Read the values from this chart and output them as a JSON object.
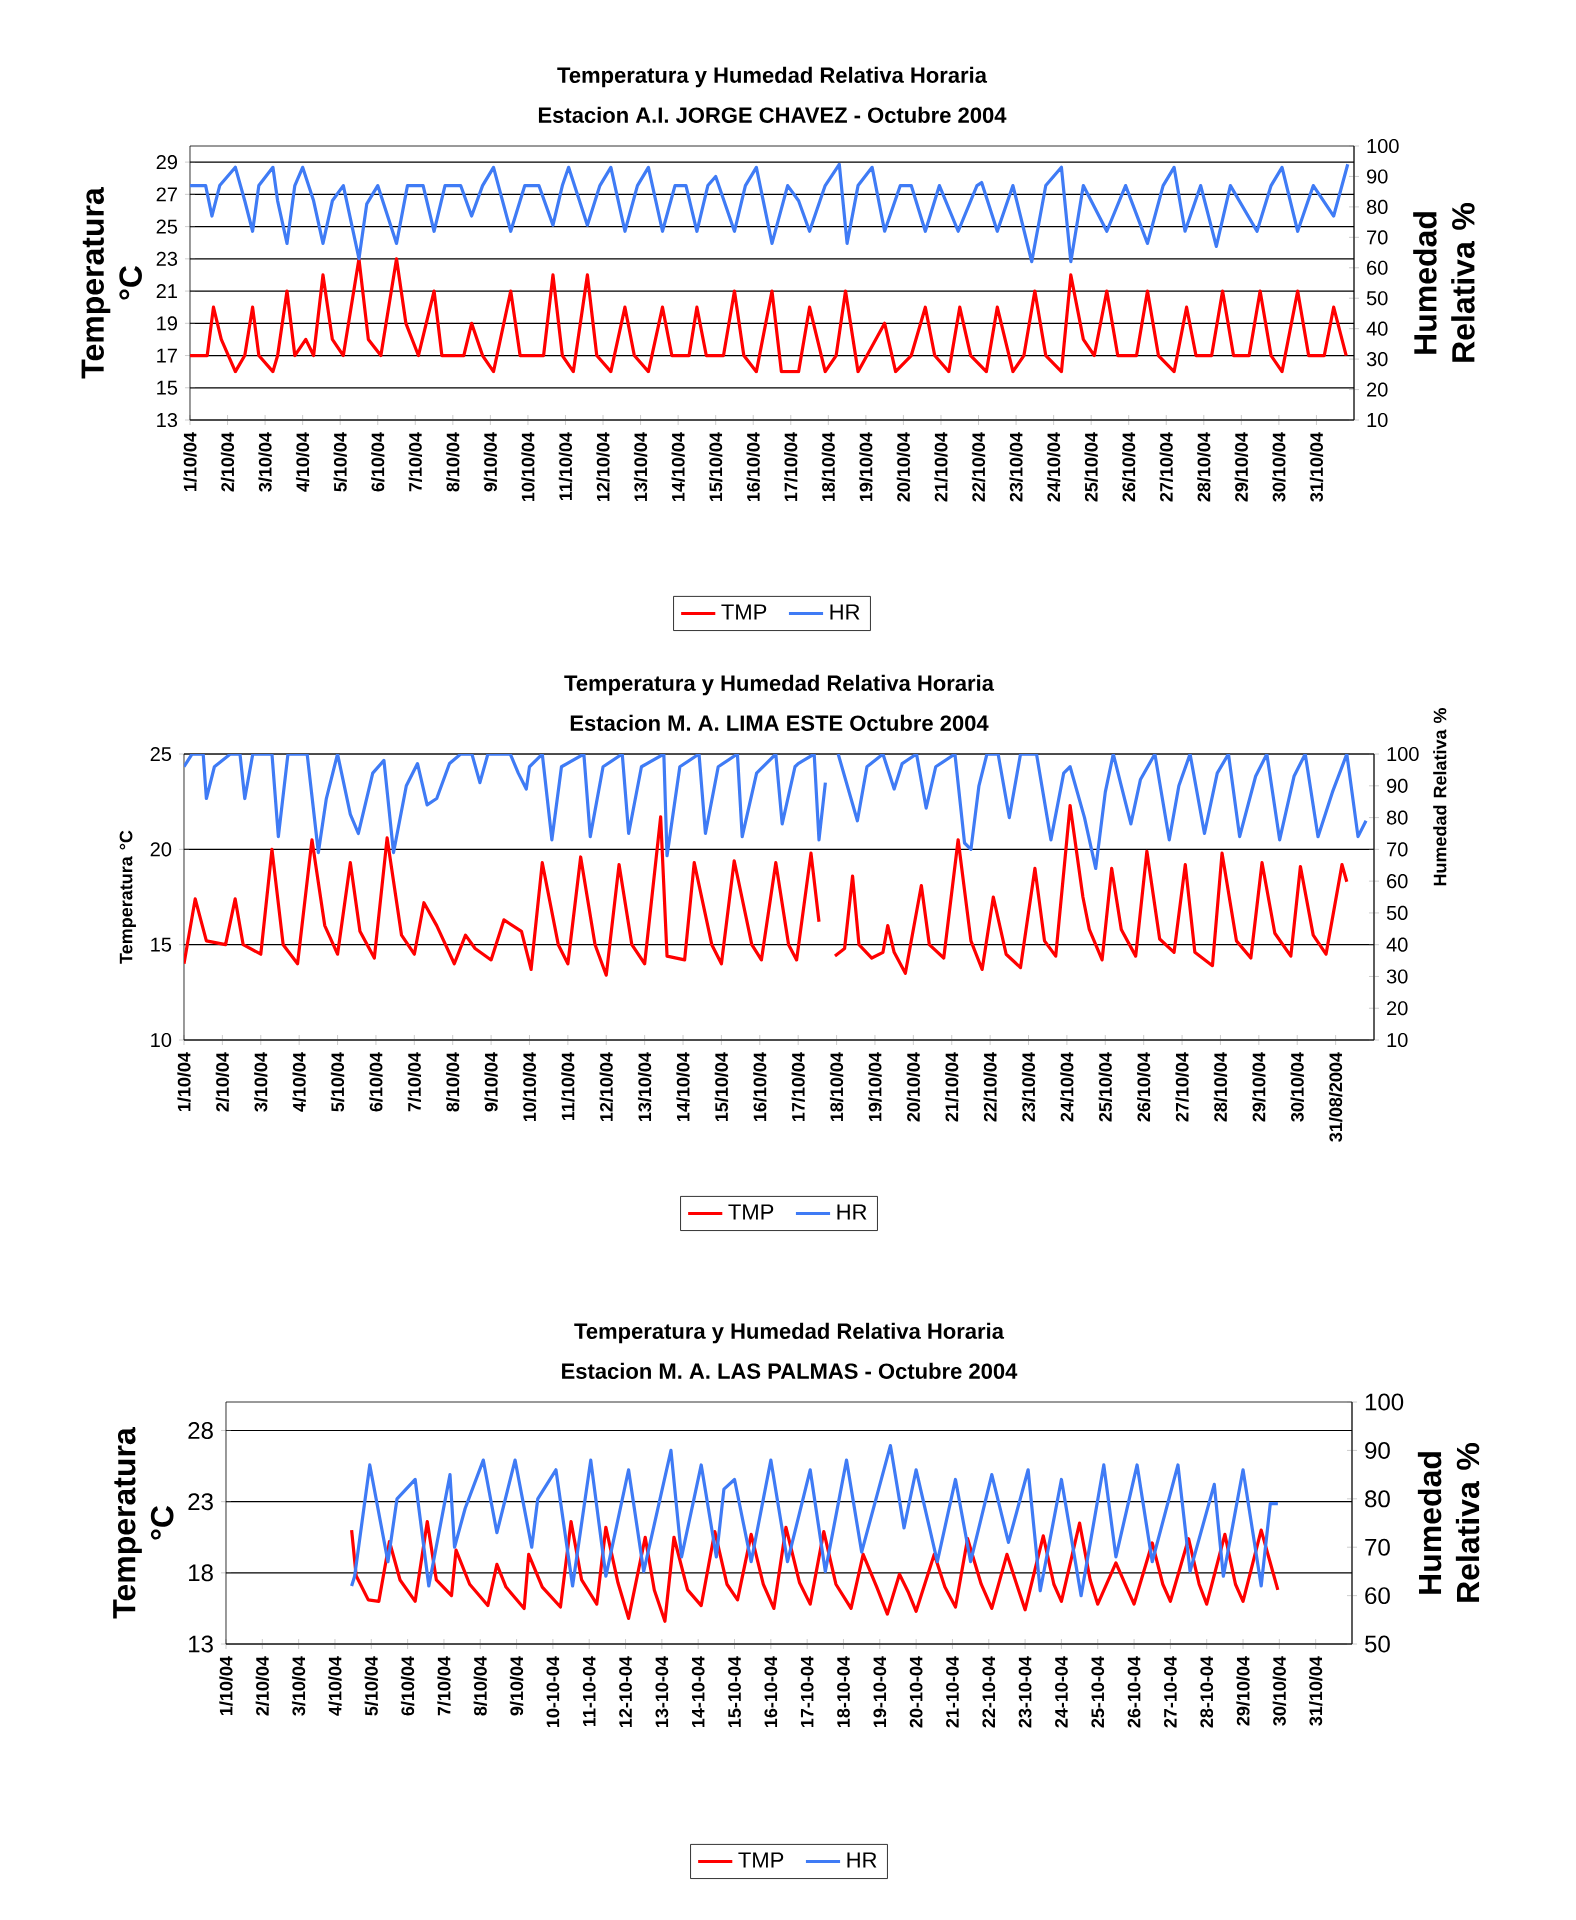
{
  "chart_data": [
    {
      "type": "line",
      "title": "Temperatura y Humedad Relativa Horaria",
      "subtitle": "Estacion A.I. JORGE CHAVEZ - Octubre 2004",
      "ylabel": "Temperatura °C",
      "y2label": "Humedad Relativa %",
      "grid": "y",
      "legend": "bottom",
      "xlim": [
        "2004-10-01",
        "2004-11-01"
      ],
      "ylim": [
        13,
        30
      ],
      "yticks": [
        13,
        15,
        17,
        19,
        21,
        23,
        25,
        27,
        29
      ],
      "y2lim": [
        10,
        100
      ],
      "y2ticks": [
        10,
        20,
        30,
        40,
        50,
        60,
        70,
        80,
        90,
        100
      ],
      "xticks": [
        {
          "value": "2004-10-01",
          "label": "1/10/04"
        },
        {
          "value": "2004-10-02",
          "label": "2/10/04"
        },
        {
          "value": "2004-10-03",
          "label": "3/10/04"
        },
        {
          "value": "2004-10-04",
          "label": "4/10/04"
        },
        {
          "value": "2004-10-05",
          "label": "5/10/04"
        },
        {
          "value": "2004-10-06",
          "label": "6/10/04"
        },
        {
          "value": "2004-10-07",
          "label": "7/10/04"
        },
        {
          "value": "2004-10-08",
          "label": "8/10/04"
        },
        {
          "value": "2004-10-09",
          "label": "9/10/04"
        },
        {
          "value": "2004-10-10",
          "label": "10/10/04"
        },
        {
          "value": "2004-10-11",
          "label": "11/10/04"
        },
        {
          "value": "2004-10-12",
          "label": "12/10/04"
        },
        {
          "value": "2004-10-13",
          "label": "13/10/04"
        },
        {
          "value": "2004-10-14",
          "label": "14/10/04"
        },
        {
          "value": "2004-10-15",
          "label": "15/10/04"
        },
        {
          "value": "2004-10-16",
          "label": "16/10/04"
        },
        {
          "value": "2004-10-17",
          "label": "17/10/04"
        },
        {
          "value": "2004-10-18",
          "label": "18/10/04"
        },
        {
          "value": "2004-10-19",
          "label": "19/10/04"
        },
        {
          "value": "2004-10-20",
          "label": "20/10/04"
        },
        {
          "value": "2004-10-21",
          "label": "21/10/04"
        },
        {
          "value": "2004-10-22",
          "label": "22/10/04"
        },
        {
          "value": "2004-10-23",
          "label": "23/10/04"
        },
        {
          "value": "2004-10-24",
          "label": "24/10/04"
        },
        {
          "value": "2004-10-25",
          "label": "25/10/04"
        },
        {
          "value": "2004-10-26",
          "label": "26/10/04"
        },
        {
          "value": "2004-10-27",
          "label": "27/10/04"
        },
        {
          "value": "2004-10-28",
          "label": "28/10/04"
        },
        {
          "value": "2004-10-29",
          "label": "29/10/04"
        },
        {
          "value": "2004-10-30",
          "label": "30/10/04"
        },
        {
          "value": "2004-10-31",
          "label": "31/10/04"
        }
      ],
      "series": [
        {
          "name": "TMP",
          "color": "#ff0000",
          "x": [
            "2004-10-01T00:00",
            "2004-10-01T11:00",
            "2004-10-01T15:00",
            "2004-10-01T20:00",
            "2004-10-02T05:00",
            "2004-10-02T11:00",
            "2004-10-02T16:00",
            "2004-10-02T20:00",
            "2004-10-03T05:00",
            "2004-10-03T08:00",
            "2004-10-03T14:00",
            "2004-10-03T19:00",
            "2004-10-04T02:00",
            "2004-10-04T07:00",
            "2004-10-04T13:00",
            "2004-10-04T19:00",
            "2004-10-05T02:00",
            "2004-10-05T12:00",
            "2004-10-05T18:00",
            "2004-10-06T02:00",
            "2004-10-06T12:00",
            "2004-10-06T18:00",
            "2004-10-07T02:00",
            "2004-10-07T12:00",
            "2004-10-07T17:00",
            "2004-10-08T07:00",
            "2004-10-08T12:00",
            "2004-10-08T19:00",
            "2004-10-09T02:00",
            "2004-10-09T13:00",
            "2004-10-09T19:00",
            "2004-10-10T10:00",
            "2004-10-10T16:00",
            "2004-10-10T22:00",
            "2004-10-11T05:00",
            "2004-10-11T14:00",
            "2004-10-11T20:00",
            "2004-10-12T05:00",
            "2004-10-12T14:00",
            "2004-10-12T20:00",
            "2004-10-13T05:00",
            "2004-10-13T14:00",
            "2004-10-13T20:00",
            "2004-10-14T07:00",
            "2004-10-14T12:00",
            "2004-10-14T18:00",
            "2004-10-15T05:00",
            "2004-10-15T12:00",
            "2004-10-15T18:00",
            "2004-10-16T02:00",
            "2004-10-16T12:00",
            "2004-10-16T18:00",
            "2004-10-17T05:00",
            "2004-10-17T12:00",
            "2004-10-17T22:00",
            "2004-10-18T05:00",
            "2004-10-18T11:00",
            "2004-10-18T19:00",
            "2004-10-19T12:00",
            "2004-10-19T19:00",
            "2004-10-20T05:00",
            "2004-10-20T14:00",
            "2004-10-20T20:00",
            "2004-10-21T05:00",
            "2004-10-21T12:00",
            "2004-10-21T19:00",
            "2004-10-22T05:00",
            "2004-10-22T12:00",
            "2004-10-22T22:00",
            "2004-10-23T05:00",
            "2004-10-23T12:00",
            "2004-10-23T19:00",
            "2004-10-24T05:00",
            "2004-10-24T11:00",
            "2004-10-24T19:00",
            "2004-10-25T02:00",
            "2004-10-25T10:00",
            "2004-10-25T17:00",
            "2004-10-26T05:00",
            "2004-10-26T12:00",
            "2004-10-26T19:00",
            "2004-10-27T05:00",
            "2004-10-27T13:00",
            "2004-10-27T19:00",
            "2004-10-28T05:00",
            "2004-10-28T12:00",
            "2004-10-28T19:00",
            "2004-10-29T05:00",
            "2004-10-29T12:00",
            "2004-10-29T19:00",
            "2004-10-30T02:00",
            "2004-10-30T12:00",
            "2004-10-30T19:00",
            "2004-10-31T05:00",
            "2004-10-31T11:00",
            "2004-10-31T19:00"
          ],
          "values": [
            17,
            17,
            20,
            18,
            16,
            17,
            20,
            17,
            16,
            17,
            21,
            17,
            18,
            17,
            22,
            18,
            17,
            23,
            18,
            17,
            23,
            19,
            17,
            21,
            17,
            17,
            19,
            17,
            16,
            21,
            17,
            17,
            22,
            17,
            16,
            22,
            17,
            16,
            20,
            17,
            16,
            20,
            17,
            17,
            20,
            17,
            17,
            21,
            17,
            16,
            21,
            16,
            16,
            20,
            16,
            17,
            21,
            16,
            19,
            16,
            17,
            20,
            17,
            16,
            20,
            17,
            16,
            20,
            16,
            17,
            21,
            17,
            16,
            22,
            18,
            17,
            21,
            17,
            17,
            21,
            17,
            16,
            20,
            17,
            17,
            21,
            17,
            17,
            21,
            17,
            16,
            21,
            17,
            17,
            20,
            17
          ]
        },
        {
          "name": "HR",
          "color": "#3f7bf5",
          "axis": "y2",
          "x": [
            "2004-10-01T00:00",
            "2004-10-01T10:00",
            "2004-10-01T14:00",
            "2004-10-01T19:00",
            "2004-10-02T05:00",
            "2004-10-02T11:00",
            "2004-10-02T16:00",
            "2004-10-02T20:00",
            "2004-10-03T05:00",
            "2004-10-03T08:00",
            "2004-10-03T14:00",
            "2004-10-03T19:00",
            "2004-10-04T00:00",
            "2004-10-04T07:00",
            "2004-10-04T13:00",
            "2004-10-04T19:00",
            "2004-10-05T02:00",
            "2004-10-05T12:00",
            "2004-10-05T17:00",
            "2004-10-06T00:00",
            "2004-10-06T12:00",
            "2004-10-06T19:00",
            "2004-10-07T05:00",
            "2004-10-07T12:00",
            "2004-10-07T19:00",
            "2004-10-08T05:00",
            "2004-10-08T12:00",
            "2004-10-08T19:00",
            "2004-10-09T02:00",
            "2004-10-09T13:00",
            "2004-10-09T22:00",
            "2004-10-10T07:00",
            "2004-10-10T16:00",
            "2004-10-10T22:00",
            "2004-10-11T02:00",
            "2004-10-11T14:00",
            "2004-10-11T22:00",
            "2004-10-12T05:00",
            "2004-10-12T14:00",
            "2004-10-12T22:00",
            "2004-10-13T05:00",
            "2004-10-13T14:00",
            "2004-10-13T22:00",
            "2004-10-14T05:00",
            "2004-10-14T12:00",
            "2004-10-14T19:00",
            "2004-10-15T00:00",
            "2004-10-15T12:00",
            "2004-10-15T19:00",
            "2004-10-16T02:00",
            "2004-10-16T12:00",
            "2004-10-16T22:00",
            "2004-10-17T05:00",
            "2004-10-17T12:00",
            "2004-10-17T22:00",
            "2004-10-18T07:00",
            "2004-10-18T12:00",
            "2004-10-18T19:00",
            "2004-10-19T04:00",
            "2004-10-19T12:00",
            "2004-10-19T22:00",
            "2004-10-20T05:00",
            "2004-10-20T14:00",
            "2004-10-20T23:00",
            "2004-10-21T11:00",
            "2004-10-21T23:00",
            "2004-10-22T02:00",
            "2004-10-22T12:00",
            "2004-10-22T22:00",
            "2004-10-23T10:00",
            "2004-10-23T19:00",
            "2004-10-24T05:00",
            "2004-10-24T11:00",
            "2004-10-24T19:00",
            "2004-10-25T10:00",
            "2004-10-25T22:00",
            "2004-10-26T12:00",
            "2004-10-26T22:00",
            "2004-10-27T05:00",
            "2004-10-27T12:00",
            "2004-10-27T22:00",
            "2004-10-28T08:00",
            "2004-10-28T17:00",
            "2004-10-29T10:00",
            "2004-10-29T19:00",
            "2004-10-30T02:00",
            "2004-10-30T12:00",
            "2004-10-30T22:00",
            "2004-10-31T11:00",
            "2004-10-31T20:00"
          ],
          "values": [
            87,
            87,
            77,
            87,
            93,
            82,
            72,
            87,
            93,
            82,
            68,
            87,
            93,
            82,
            68,
            82,
            87,
            63,
            81,
            87,
            68,
            87,
            87,
            72,
            87,
            87,
            77,
            87,
            93,
            72,
            87,
            87,
            74,
            87,
            93,
            74,
            87,
            93,
            72,
            87,
            93,
            72,
            87,
            87,
            72,
            87,
            90,
            72,
            87,
            93,
            68,
            87,
            82,
            72,
            87,
            94,
            68,
            87,
            93,
            72,
            87,
            87,
            72,
            87,
            72,
            87,
            88,
            72,
            87,
            62,
            87,
            93,
            62,
            87,
            72,
            87,
            68,
            87,
            93,
            72,
            87,
            67,
            87,
            72,
            87,
            93,
            72,
            87,
            77,
            94
          ]
        }
      ]
    },
    {
      "type": "line",
      "title": "Temperatura y Humedad Relativa Horaria",
      "subtitle": "Estacion M. A. LIMA ESTE Octubre 2004",
      "ylabel": "Temperatura °C",
      "y2label": "Humedad Relativa %",
      "grid": "y",
      "legend": "bottom",
      "xlim": [
        "2004-10-01",
        "2004-11-01"
      ],
      "ylim": [
        10,
        25
      ],
      "yticks": [
        10,
        15,
        20,
        25
      ],
      "y2lim": [
        10,
        100
      ],
      "y2ticks": [
        10,
        20,
        30,
        40,
        50,
        60,
        70,
        80,
        90,
        100
      ],
      "xticks": [
        {
          "value": "2004-10-01",
          "label": "1/10/04"
        },
        {
          "value": "2004-10-02",
          "label": "2/10/04"
        },
        {
          "value": "2004-10-03",
          "label": "3/10/04"
        },
        {
          "value": "2004-10-04",
          "label": "4/10/04"
        },
        {
          "value": "2004-10-05",
          "label": "5/10/04"
        },
        {
          "value": "2004-10-06",
          "label": "6/10/04"
        },
        {
          "value": "2004-10-07",
          "label": "7/10/04"
        },
        {
          "value": "2004-10-08",
          "label": "8/10/04"
        },
        {
          "value": "2004-10-09",
          "label": "9/10/04"
        },
        {
          "value": "2004-10-10",
          "label": "10/10/04"
        },
        {
          "value": "2004-10-11",
          "label": "11/10/04"
        },
        {
          "value": "2004-10-12",
          "label": "12/10/04"
        },
        {
          "value": "2004-10-13",
          "label": "13/10/04"
        },
        {
          "value": "2004-10-14",
          "label": "14/10/04"
        },
        {
          "value": "2004-10-15",
          "label": "15/10/04"
        },
        {
          "value": "2004-10-16",
          "label": "16/10/04"
        },
        {
          "value": "2004-10-17",
          "label": "17/10/04"
        },
        {
          "value": "2004-10-18",
          "label": "18/10/04"
        },
        {
          "value": "2004-10-19",
          "label": "19/10/04"
        },
        {
          "value": "2004-10-20",
          "label": "20/10/04"
        },
        {
          "value": "2004-10-21",
          "label": "21/10/04"
        },
        {
          "value": "2004-10-22",
          "label": "22/10/04"
        },
        {
          "value": "2004-10-23",
          "label": "23/10/04"
        },
        {
          "value": "2004-10-24",
          "label": "24/10/04"
        },
        {
          "value": "2004-10-25",
          "label": "25/10/04"
        },
        {
          "value": "2004-10-26",
          "label": "26/10/04"
        },
        {
          "value": "2004-10-27",
          "label": "27/10/04"
        },
        {
          "value": "2004-10-28",
          "label": "28/10/04"
        },
        {
          "value": "2004-10-29",
          "label": "29/10/04"
        },
        {
          "value": "2004-10-30",
          "label": "30/10/04"
        },
        {
          "value": "2004-10-31",
          "label": "31/08/2004"
        }
      ],
      "series": [
        {
          "name": "TMP",
          "color": "#ff0000",
          "x": [
            "2004-10-01T00:00",
            "2004-10-01T07:00",
            "2004-10-01T14:00",
            "2004-10-02T02:00",
            "2004-10-02T08:00",
            "2004-10-02T13:00",
            "2004-10-03T00:00",
            "2004-10-03T07:00",
            "2004-10-03T14:00",
            "2004-10-03T23:00",
            "2004-10-04T08:00",
            "2004-10-04T16:00",
            "2004-10-05T00:00",
            "2004-10-05T08:00",
            "2004-10-05T14:00",
            "2004-10-05T23:00",
            "2004-10-06T07:00",
            "2004-10-06T16:00",
            "2004-10-07T00:00",
            "2004-10-07T06:00",
            "2004-10-07T14:00",
            "2004-10-08T01:00",
            "2004-10-08T08:00",
            "2004-10-08T14:00",
            "2004-10-09T00:00",
            "2004-10-09T08:00",
            "2004-10-09T19:00",
            "2004-10-10T01:00",
            "2004-10-10T08:00",
            "2004-10-10T18:00",
            "2004-10-11T00:00",
            "2004-10-11T08:00",
            "2004-10-11T17:00",
            "2004-10-12T00:00",
            "2004-10-12T08:00",
            "2004-10-12T16:00",
            "2004-10-13T00:00",
            "2004-10-13T10:00",
            "2004-10-13T14:00",
            "2004-10-14T01:00",
            "2004-10-14T07:00",
            "2004-10-14T18:00",
            "2004-10-15T00:00",
            "2004-10-15T08:00",
            "2004-10-15T19:00",
            "2004-10-16T01:00",
            "2004-10-16T10:00",
            "2004-10-16T18:00",
            "2004-10-16T23:00",
            "2004-10-17T08:00",
            "2004-10-17T13:00",
            "2004-10-17T19:00",
            "2004-10-17T23:00",
            "2004-10-18T05:00",
            "2004-10-18T10:00",
            "2004-10-18T14:00",
            "2004-10-18T22:00",
            "2004-10-19T05:00",
            "2004-10-19T08:00",
            "2004-10-19T12:00",
            "2004-10-19T19:00",
            "2004-10-20T05:00",
            "2004-10-20T10:00",
            "2004-10-20T19:00",
            "2004-10-21T04:00",
            "2004-10-21T12:00",
            "2004-10-21T19:00",
            "2004-10-22T02:00",
            "2004-10-22T10:00",
            "2004-10-22T19:00",
            "2004-10-23T04:00",
            "2004-10-23T10:00",
            "2004-10-23T17:00",
            "2004-10-24T02:00",
            "2004-10-24T10:00",
            "2004-10-24T14:00",
            "2004-10-24T22:00",
            "2004-10-25T04:00",
            "2004-10-25T10:00",
            "2004-10-25T19:00",
            "2004-10-26T02:00",
            "2004-10-26T10:00",
            "2004-10-26T19:00",
            "2004-10-27T02:00",
            "2004-10-27T08:00",
            "2004-10-27T19:00",
            "2004-10-28T01:00",
            "2004-10-28T10:00",
            "2004-10-28T19:00",
            "2004-10-29T02:00",
            "2004-10-29T10:00",
            "2004-10-29T20:00",
            "2004-10-30T02:00",
            "2004-10-30T10:00",
            "2004-10-30T18:00",
            "2004-10-31T04:00",
            "2004-10-31T07:00"
          ],
          "values": [
            14,
            17.4,
            15.2,
            15,
            17.4,
            15,
            14.5,
            20,
            15,
            14,
            20.5,
            16,
            14.5,
            19.3,
            15.7,
            14.3,
            20.6,
            15.5,
            14.5,
            17.2,
            16,
            14,
            15.5,
            14.8,
            14.2,
            16.3,
            15.7,
            13.7,
            19.3,
            15,
            14,
            19.6,
            15,
            13.4,
            19.2,
            15,
            14,
            21.7,
            14.4,
            14.2,
            19.3,
            15,
            14,
            19.4,
            15,
            14.2,
            19.3,
            15,
            14.2,
            19.8,
            16.2,
            null,
            14.4,
            14.8,
            18.6,
            15,
            14.3,
            14.6,
            16,
            14.6,
            13.5,
            18.1,
            15,
            14.3,
            20.5,
            15.2,
            13.7,
            17.5,
            14.5,
            13.8,
            19,
            15.2,
            14.4,
            22.3,
            17.5,
            15.8,
            14.2,
            19,
            15.8,
            14.4,
            19.9,
            15.3,
            14.6,
            19.2,
            14.6,
            13.9,
            19.8,
            15.2,
            14.3,
            19.3,
            15.6,
            14.4,
            19.1,
            15.5,
            14.5,
            19.2,
            18.3
          ]
        },
        {
          "name": "HR",
          "color": "#3f7bf5",
          "axis": "y2",
          "x": [
            "2004-10-01T00:00",
            "2004-10-01T05:00",
            "2004-10-01T12:00",
            "2004-10-01T14:00",
            "2004-10-01T19:00",
            "2004-10-02T05:00",
            "2004-10-02T11:00",
            "2004-10-02T14:00",
            "2004-10-02T19:00",
            "2004-10-03T07:00",
            "2004-10-03T11:00",
            "2004-10-03T17:00",
            "2004-10-04T05:00",
            "2004-10-04T12:00",
            "2004-10-04T17:00",
            "2004-10-05T00:00",
            "2004-10-05T08:00",
            "2004-10-05T13:00",
            "2004-10-05T22:00",
            "2004-10-06T05:00",
            "2004-10-06T11:00",
            "2004-10-06T19:00",
            "2004-10-07T02:00",
            "2004-10-07T08:00",
            "2004-10-07T14:00",
            "2004-10-07T22:00",
            "2004-10-08T05:00",
            "2004-10-08T12:00",
            "2004-10-08T17:00",
            "2004-10-08T22:00",
            "2004-10-09T12:00",
            "2004-10-09T17:00",
            "2004-10-09T22:00",
            "2004-10-10T00:00",
            "2004-10-10T08:00",
            "2004-10-10T14:00",
            "2004-10-10T20:00",
            "2004-10-11T10:00",
            "2004-10-11T14:00",
            "2004-10-11T22:00",
            "2004-10-12T10:00",
            "2004-10-12T14:00",
            "2004-10-12T22:00",
            "2004-10-13T12:00",
            "2004-10-13T14:00",
            "2004-10-13T22:00",
            "2004-10-14T10:00",
            "2004-10-14T14:00",
            "2004-10-14T22:00",
            "2004-10-15T10:00",
            "2004-10-15T13:00",
            "2004-10-15T22:00",
            "2004-10-16T10:00",
            "2004-10-16T14:00",
            "2004-10-16T22:00",
            "2004-10-17T00:00",
            "2004-10-17T10:00",
            "2004-10-17T13:00",
            "2004-10-17T17:00",
            "2004-10-17T19:00",
            "2004-10-18T01:00",
            "2004-10-18T13:00",
            "2004-10-18T19:00",
            "2004-10-19T05:00",
            "2004-10-19T12:00",
            "2004-10-19T17:00",
            "2004-10-20T02:00",
            "2004-10-20T08:00",
            "2004-10-20T14:00",
            "2004-10-21T02:00",
            "2004-10-21T08:00",
            "2004-10-21T12:00",
            "2004-10-21T17:00",
            "2004-10-21T22:00",
            "2004-10-22T05:00",
            "2004-10-22T12:00",
            "2004-10-22T19:00",
            "2004-10-23T05:00",
            "2004-10-23T14:00",
            "2004-10-23T22:00",
            "2004-10-24T02:00",
            "2004-10-24T11:00",
            "2004-10-24T18:00",
            "2004-10-25T00:00",
            "2004-10-25T05:00",
            "2004-10-25T10:00",
            "2004-10-25T16:00",
            "2004-10-25T22:00",
            "2004-10-26T07:00",
            "2004-10-26T16:00",
            "2004-10-26T22:00",
            "2004-10-27T05:00",
            "2004-10-27T14:00",
            "2004-10-27T22:00",
            "2004-10-28T05:00",
            "2004-10-28T12:00",
            "2004-10-28T22:00",
            "2004-10-29T05:00",
            "2004-10-29T13:00",
            "2004-10-29T22:00",
            "2004-10-30T05:00",
            "2004-10-30T13:00",
            "2004-10-30T22:00",
            "2004-10-31T07:00",
            "2004-10-31T14:00",
            "2004-10-31T19:00"
          ],
          "values": [
            96,
            100,
            100,
            86,
            96,
            100,
            100,
            86,
            100,
            100,
            74,
            100,
            100,
            69,
            86,
            100,
            81,
            75,
            94,
            98,
            69,
            90,
            97,
            84,
            86,
            97,
            100,
            100,
            91,
            100,
            100,
            94,
            89,
            96,
            100,
            73,
            96,
            100,
            74,
            96,
            100,
            75,
            96,
            100,
            68,
            96,
            100,
            75,
            96,
            100,
            74,
            94,
            100,
            78,
            96,
            97,
            100,
            73,
            91,
            null,
            100,
            79,
            96,
            100,
            89,
            97,
            100,
            83,
            96,
            100,
            72,
            70,
            90,
            100,
            100,
            80,
            100,
            100,
            73,
            94,
            96,
            80,
            64,
            88,
            100,
            90,
            78,
            92,
            100,
            73,
            90,
            100,
            75,
            94,
            100,
            74,
            93,
            100,
            73,
            93,
            100,
            74,
            88,
            100,
            74,
            79
          ]
        }
      ]
    },
    {
      "type": "line",
      "title": "Temperatura y Humedad Relativa Horaria",
      "subtitle": "Estacion M. A. LAS PALMAS - Octubre 2004",
      "ylabel": "Temperatura °C",
      "y2label": "Humedad Relativa %",
      "grid": "y",
      "legend": "bottom",
      "xlim": [
        "2004-10-01",
        "2004-11-01"
      ],
      "ylim": [
        13,
        30
      ],
      "yticks": [
        13,
        18,
        23,
        28
      ],
      "y2lim": [
        50,
        100
      ],
      "y2ticks": [
        50,
        60,
        70,
        80,
        90,
        100
      ],
      "xticks": [
        {
          "value": "2004-10-01",
          "label": "1/10/04"
        },
        {
          "value": "2004-10-02",
          "label": "2/10/04"
        },
        {
          "value": "2004-10-03",
          "label": "3/10/04"
        },
        {
          "value": "2004-10-04",
          "label": "4/10/04"
        },
        {
          "value": "2004-10-05",
          "label": "5/10/04"
        },
        {
          "value": "2004-10-06",
          "label": "6/10/04"
        },
        {
          "value": "2004-10-07",
          "label": "7/10/04"
        },
        {
          "value": "2004-10-08",
          "label": "8/10/04"
        },
        {
          "value": "2004-10-09",
          "label": "9/10/04"
        },
        {
          "value": "2004-10-10",
          "label": "10-10-04"
        },
        {
          "value": "2004-10-11",
          "label": "11-10-04"
        },
        {
          "value": "2004-10-12",
          "label": "12-10-04"
        },
        {
          "value": "2004-10-13",
          "label": "13-10-04"
        },
        {
          "value": "2004-10-14",
          "label": "14-10-04"
        },
        {
          "value": "2004-10-15",
          "label": "15-10-04"
        },
        {
          "value": "2004-10-16",
          "label": "16-10-04"
        },
        {
          "value": "2004-10-17",
          "label": "17-10-04"
        },
        {
          "value": "2004-10-18",
          "label": "18-10-04"
        },
        {
          "value": "2004-10-19",
          "label": "19-10-04"
        },
        {
          "value": "2004-10-20",
          "label": "20-10-04"
        },
        {
          "value": "2004-10-21",
          "label": "21-10-04"
        },
        {
          "value": "2004-10-22",
          "label": "22-10-04"
        },
        {
          "value": "2004-10-23",
          "label": "23-10-04"
        },
        {
          "value": "2004-10-24",
          "label": "24-10-04"
        },
        {
          "value": "2004-10-25",
          "label": "25-10-04"
        },
        {
          "value": "2004-10-26",
          "label": "26-10-04"
        },
        {
          "value": "2004-10-27",
          "label": "27-10-04"
        },
        {
          "value": "2004-10-28",
          "label": "28-10-04"
        },
        {
          "value": "2004-10-29",
          "label": "29/10/04"
        },
        {
          "value": "2004-10-30",
          "label": "30/10/04"
        },
        {
          "value": "2004-10-31",
          "label": "31/10/04"
        }
      ],
      "series": [
        {
          "name": "TMP",
          "color": "#ff0000",
          "x": [
            "2004-10-04T11:00",
            "2004-10-04T14:00",
            "2004-10-04T22:00",
            "2004-10-05T05:00",
            "2004-10-05T12:00",
            "2004-10-05T19:00",
            "2004-10-06T05:00",
            "2004-10-06T13:00",
            "2004-10-06T19:00",
            "2004-10-07T05:00",
            "2004-10-07T08:00",
            "2004-10-07T17:00",
            "2004-10-08T05:00",
            "2004-10-08T11:00",
            "2004-10-08T17:00",
            "2004-10-09T05:00",
            "2004-10-09T08:00",
            "2004-10-09T17:00",
            "2004-10-10T05:00",
            "2004-10-10T12:00",
            "2004-10-10T19:00",
            "2004-10-11T05:00",
            "2004-10-11T11:00",
            "2004-10-11T19:00",
            "2004-10-12T02:00",
            "2004-10-12T13:00",
            "2004-10-12T19:00",
            "2004-10-13T02:00",
            "2004-10-13T08:00",
            "2004-10-13T17:00",
            "2004-10-14T02:00",
            "2004-10-14T11:00",
            "2004-10-14T19:00",
            "2004-10-15T02:00",
            "2004-10-15T11:00",
            "2004-10-15T19:00",
            "2004-10-16T02:00",
            "2004-10-16T10:00",
            "2004-10-16T19:00",
            "2004-10-17T02:00",
            "2004-10-17T11:00",
            "2004-10-17T19:00",
            "2004-10-18T05:00",
            "2004-10-18T13:00",
            "2004-10-18T22:00",
            "2004-10-19T05:00",
            "2004-10-19T13:00",
            "2004-10-19T19:00",
            "2004-10-20T00:00",
            "2004-10-20T12:00",
            "2004-10-20T19:00",
            "2004-10-21T02:00",
            "2004-10-21T10:00",
            "2004-10-21T19:00",
            "2004-10-22T02:00",
            "2004-10-22T12:00",
            "2004-10-22T19:00",
            "2004-10-23T00:00",
            "2004-10-23T12:00",
            "2004-10-23T19:00",
            "2004-10-24T00:00",
            "2004-10-24T12:00",
            "2004-10-24T19:00",
            "2004-10-25T00:00",
            "2004-10-25T12:00",
            "2004-10-25T19:00",
            "2004-10-26T00:00",
            "2004-10-26T12:00",
            "2004-10-26T19:00",
            "2004-10-27T00:00",
            "2004-10-27T12:00",
            "2004-10-27T19:00",
            "2004-10-28T00:00",
            "2004-10-28T12:00",
            "2004-10-28T19:00",
            "2004-10-29T00:00",
            "2004-10-29T12:00",
            "2004-10-29T23:00"
          ],
          "values": [
            21,
            17.8,
            16.1,
            16,
            20.2,
            17.5,
            16,
            21.6,
            17.5,
            16.4,
            19.6,
            17.2,
            15.7,
            18.6,
            17,
            15.5,
            19.3,
            17,
            15.6,
            21.6,
            17.5,
            15.8,
            21.2,
            17.3,
            14.8,
            20.5,
            16.8,
            14.6,
            20.5,
            16.8,
            15.7,
            20.9,
            17.2,
            16.1,
            20.7,
            17.2,
            15.5,
            21.2,
            17.3,
            15.8,
            20.9,
            17.2,
            15.5,
            19.3,
            17,
            15.1,
            17.9,
            16.6,
            15.3,
            19.3,
            17,
            15.6,
            20.4,
            17.2,
            15.5,
            19.3,
            17,
            15.4,
            20.6,
            17.2,
            16,
            21.5,
            17.5,
            15.8,
            18.7,
            17,
            15.8,
            20.1,
            17.2,
            16,
            20.4,
            17.2,
            15.8,
            20.7,
            17.2,
            16,
            21,
            16.8
          ]
        },
        {
          "name": "HR",
          "color": "#3f7bf5",
          "axis": "y2",
          "x": [
            "2004-10-04T11:00",
            "2004-10-04T13:00",
            "2004-10-04T23:00",
            "2004-10-05T11:00",
            "2004-10-05T17:00",
            "2004-10-06T05:00",
            "2004-10-06T14:00",
            "2004-10-07T04:00",
            "2004-10-07T07:00",
            "2004-10-07T14:00",
            "2004-10-08T02:00",
            "2004-10-08T11:00",
            "2004-10-08T23:00",
            "2004-10-09T10:00",
            "2004-10-09T14:00",
            "2004-10-10T02:00",
            "2004-10-10T13:00",
            "2004-10-11T01:00",
            "2004-10-11T11:00",
            "2004-10-12T02:00",
            "2004-10-12T12:00",
            "2004-10-13T06:00",
            "2004-10-13T13:00",
            "2004-10-14T02:00",
            "2004-10-14T12:00",
            "2004-10-14T17:00",
            "2004-10-15T00:00",
            "2004-10-15T11:00",
            "2004-10-16T00:00",
            "2004-10-16T11:00",
            "2004-10-17T02:00",
            "2004-10-17T12:00",
            "2004-10-18T02:00",
            "2004-10-18T12:00",
            "2004-10-19T07:00",
            "2004-10-19T16:00",
            "2004-10-20T00:00",
            "2004-10-20T14:00",
            "2004-10-21T02:00",
            "2004-10-21T12:00",
            "2004-10-22T02:00",
            "2004-10-22T13:00",
            "2004-10-23T02:00",
            "2004-10-23T10:00",
            "2004-10-24T00:00",
            "2004-10-24T13:00",
            "2004-10-25T04:00",
            "2004-10-25T12:00",
            "2004-10-26T02:00",
            "2004-10-26T12:00",
            "2004-10-27T05:00",
            "2004-10-27T13:00",
            "2004-10-28T05:00",
            "2004-10-28T11:00",
            "2004-10-29T00:00",
            "2004-10-29T12:00",
            "2004-10-29T18:00",
            "2004-10-29T23:00"
          ],
          "values": [
            62,
            64,
            87,
            67,
            80,
            84,
            62,
            85,
            70,
            78,
            88,
            73,
            88,
            70,
            80,
            86,
            62,
            88,
            64,
            86,
            65,
            90,
            68,
            87,
            68,
            82,
            84,
            67,
            88,
            67,
            86,
            65,
            88,
            69,
            91,
            74,
            86,
            67,
            84,
            67,
            85,
            71,
            86,
            61,
            84,
            60,
            87,
            68,
            87,
            67,
            87,
            65,
            83,
            64,
            86,
            62,
            79,
            79
          ]
        }
      ]
    }
  ]
}
